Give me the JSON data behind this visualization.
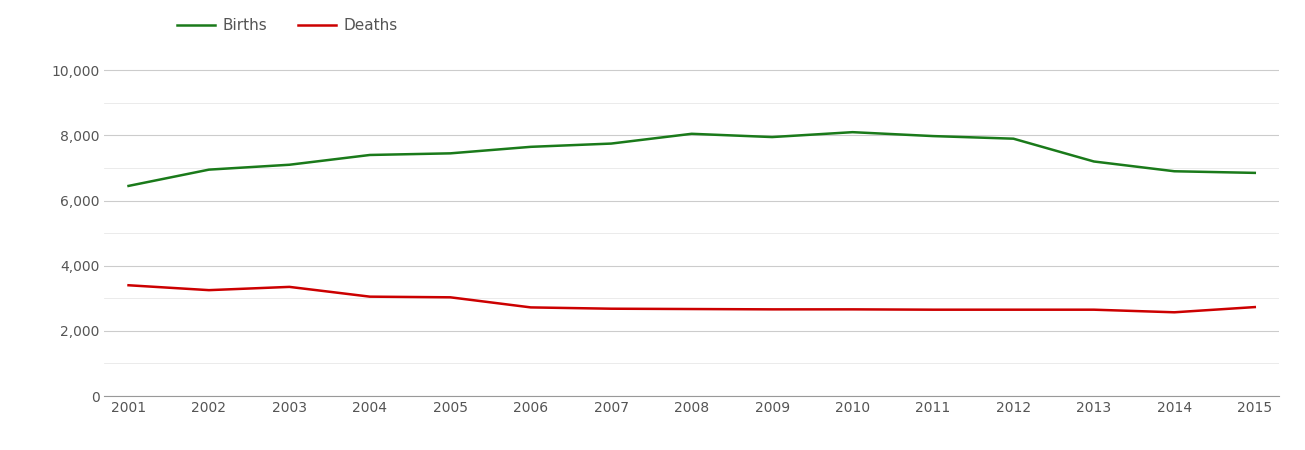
{
  "years": [
    2001,
    2002,
    2003,
    2004,
    2005,
    2006,
    2007,
    2008,
    2009,
    2010,
    2011,
    2012,
    2013,
    2014,
    2015
  ],
  "births": [
    6450,
    6950,
    7100,
    7400,
    7450,
    7650,
    7750,
    8050,
    7950,
    8100,
    7980,
    7900,
    7200,
    6900,
    6850
  ],
  "deaths": [
    3400,
    3250,
    3350,
    3050,
    3030,
    2720,
    2680,
    2670,
    2660,
    2660,
    2650,
    2650,
    2650,
    2570,
    2730
  ],
  "births_color": "#1a7a1a",
  "deaths_color": "#cc0000",
  "background_color": "#ffffff",
  "major_grid_color": "#cccccc",
  "minor_grid_color": "#e8e8e8",
  "legend_labels": [
    "Births",
    "Deaths"
  ],
  "ylim": [
    0,
    10500
  ],
  "yticks_major": [
    0,
    2000,
    4000,
    6000,
    8000,
    10000
  ],
  "ytick_labels": [
    "0",
    "2,000",
    "4,000",
    "6,000",
    "8,000",
    "10,000"
  ],
  "line_width": 1.8,
  "legend_fontsize": 11,
  "tick_fontsize": 10,
  "text_color": "#555555"
}
